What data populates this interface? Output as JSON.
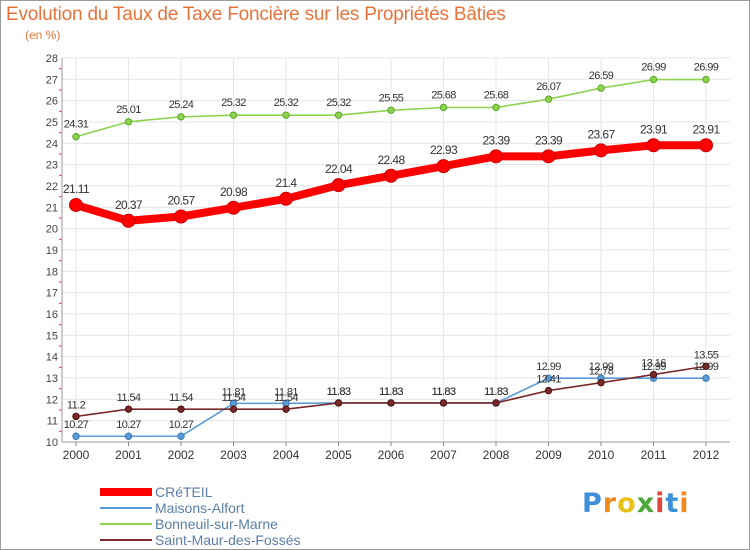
{
  "chart_data": {
    "type": "line",
    "title": "Evolution du Taux de Taxe Foncière sur les Propriétés Bâties",
    "subtitle": "(en %)",
    "x": [
      "2000",
      "2001",
      "2002",
      "2003",
      "2004",
      "2005",
      "2006",
      "2007",
      "2008",
      "2009",
      "2010",
      "2011",
      "2012"
    ],
    "ylim": [
      10,
      28
    ],
    "yticks": [
      "10",
      "11",
      "12",
      "13",
      "14",
      "15",
      "16",
      "17",
      "18",
      "19",
      "20",
      "21",
      "22",
      "23",
      "24",
      "25",
      "26",
      "27",
      "28"
    ],
    "grid": true,
    "legend_position": "bottom-left",
    "series": [
      {
        "name": "CRéTEIL",
        "color": "#ff0000",
        "values": [
          21.11,
          20.37,
          20.57,
          20.98,
          21.4,
          22.04,
          22.48,
          22.93,
          23.39,
          23.39,
          23.67,
          23.91,
          23.91
        ],
        "labels": [
          "21.11",
          "20.37",
          "20.57",
          "20.98",
          "21.4",
          "22.04",
          "22.48",
          "22.93",
          "23.39",
          "23.39",
          "23.67",
          "23.91",
          "23.91"
        ]
      },
      {
        "name": "Maisons-Alfort",
        "color": "#5b9bd5",
        "values": [
          10.27,
          10.27,
          10.27,
          11.81,
          11.81,
          11.83,
          11.83,
          11.83,
          11.83,
          12.99,
          12.99,
          12.99,
          12.99
        ],
        "labels": [
          "10.27",
          "10.27",
          "10.27",
          "11.81",
          "11.81",
          "11.83",
          "11.83",
          "11.83",
          "11.83",
          "12.99",
          "12.99",
          "12.99",
          "12.99"
        ]
      },
      {
        "name": "Bonneuil-sur-Marne",
        "color": "#8ed24e",
        "values": [
          24.31,
          25.01,
          25.24,
          25.32,
          25.32,
          25.32,
          25.55,
          25.68,
          25.68,
          26.07,
          26.59,
          26.99,
          26.99
        ],
        "labels": [
          "24.31",
          "25.01",
          "25.24",
          "25.32",
          "25.32",
          "25.32",
          "25.55",
          "25.68",
          "25.68",
          "26.07",
          "26.59",
          "26.99",
          "26.99"
        ]
      },
      {
        "name": "Saint-Maur-des-Fossés",
        "color": "#7a2a2a",
        "values": [
          11.2,
          11.54,
          11.54,
          11.54,
          11.54,
          11.83,
          11.83,
          11.83,
          11.83,
          12.41,
          12.78,
          13.16,
          13.55
        ],
        "labels": [
          "11.2",
          "11.54",
          "11.54",
          "11.54",
          "11.54",
          "11.83",
          "11.83",
          "11.83",
          "11.83",
          "12.41",
          "12.78",
          "13.16",
          "13.55"
        ]
      }
    ]
  },
  "brand": {
    "name": "Proxiti",
    "letters": [
      "P",
      "r",
      "o",
      "x",
      "i",
      "t",
      "i"
    ],
    "colors": [
      "#3c8fd8",
      "#f08a1c",
      "#e8c21a",
      "#4aa83a",
      "#e0463c",
      "#3c8fd8",
      "#f08a1c"
    ]
  }
}
